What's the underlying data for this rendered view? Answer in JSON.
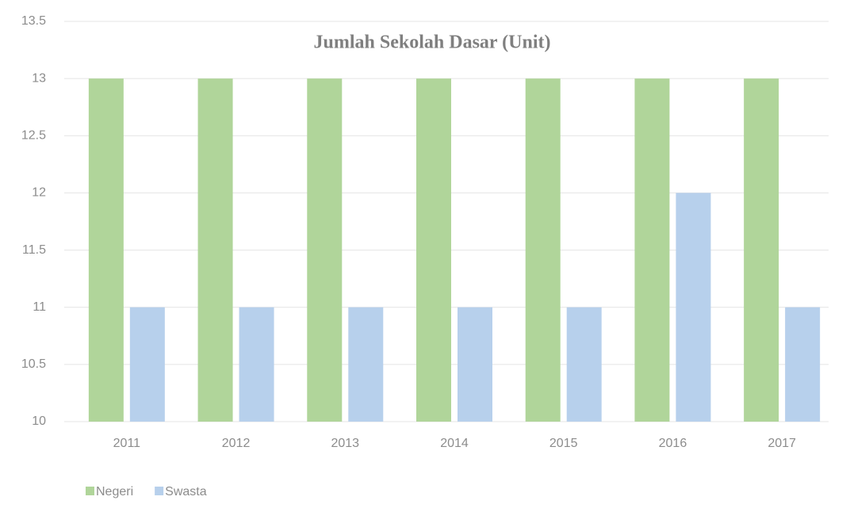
{
  "chart_data": {
    "type": "bar",
    "title": "Jumlah Sekolah Dasar (Unit)",
    "categories": [
      "2011",
      "2012",
      "2013",
      "2014",
      "2015",
      "2016",
      "2017"
    ],
    "series": [
      {
        "name": "Negeri",
        "color": "#b0d59a",
        "values": [
          13,
          13,
          13,
          13,
          13,
          13,
          13
        ]
      },
      {
        "name": "Swasta",
        "color": "#b7d0ec",
        "values": [
          11,
          11,
          11,
          11,
          11,
          12,
          11
        ]
      }
    ],
    "ylim": [
      10,
      13.5
    ],
    "yticks": [
      10,
      10.5,
      11,
      11.5,
      12,
      12.5,
      13,
      13.5
    ],
    "grid": true,
    "legend": "bottom-left"
  }
}
